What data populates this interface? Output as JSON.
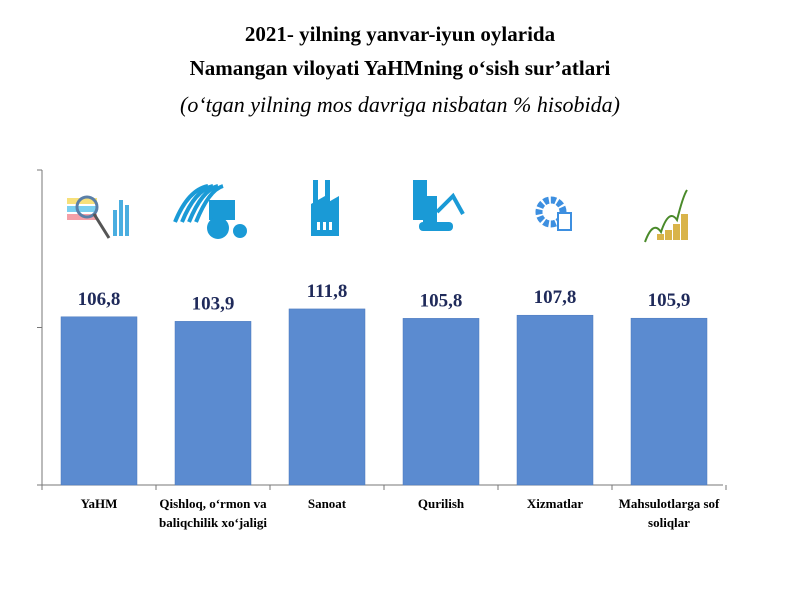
{
  "title": {
    "line1": "2021- yilning yanvar-iyun oylarida",
    "line2": "Namangan viloyati YaHMning o‘sish sur’atlari",
    "subtitle": "(o‘tgan yilning mos davriga nisbatan % hisobida)"
  },
  "colors": {
    "bar": "#5b8bd0",
    "bar_edge": "#4a78bd",
    "icon": "#1a9ad6",
    "value_label": "#1f2a5a"
  },
  "chart_data": {
    "type": "bar",
    "title": "2021- yilning yanvar-iyun oylarida Namangan viloyati YaHMning o‘sish sur’atlari",
    "subtitle": "(o‘tgan yilning mos davriga nisbatan % hisobida)",
    "categories": [
      [
        "YaHM"
      ],
      [
        "Qishloq, o‘rmon va",
        "baliqchilik xo‘jaligi"
      ],
      [
        "Sanoat"
      ],
      [
        "Qurilish"
      ],
      [
        "Xizmatlar"
      ],
      [
        "Mahsulotlarga sof",
        "soliqlar"
      ]
    ],
    "values": [
      106.8,
      103.9,
      111.8,
      105.8,
      107.8,
      105.9
    ],
    "value_labels": [
      "106,8",
      "103,9",
      "111,8",
      "105,8",
      "107,8",
      "105,9"
    ],
    "icons": [
      "analytics-icon",
      "agriculture-tractor-icon",
      "factory-icon",
      "construction-excavator-icon",
      "services-gear-icon",
      "coins-growth-icon"
    ],
    "xlabel": "",
    "ylabel": "",
    "ylim": [
      0,
      200
    ],
    "yticks": [
      0,
      100,
      200
    ],
    "grid": false,
    "legend": "none"
  }
}
